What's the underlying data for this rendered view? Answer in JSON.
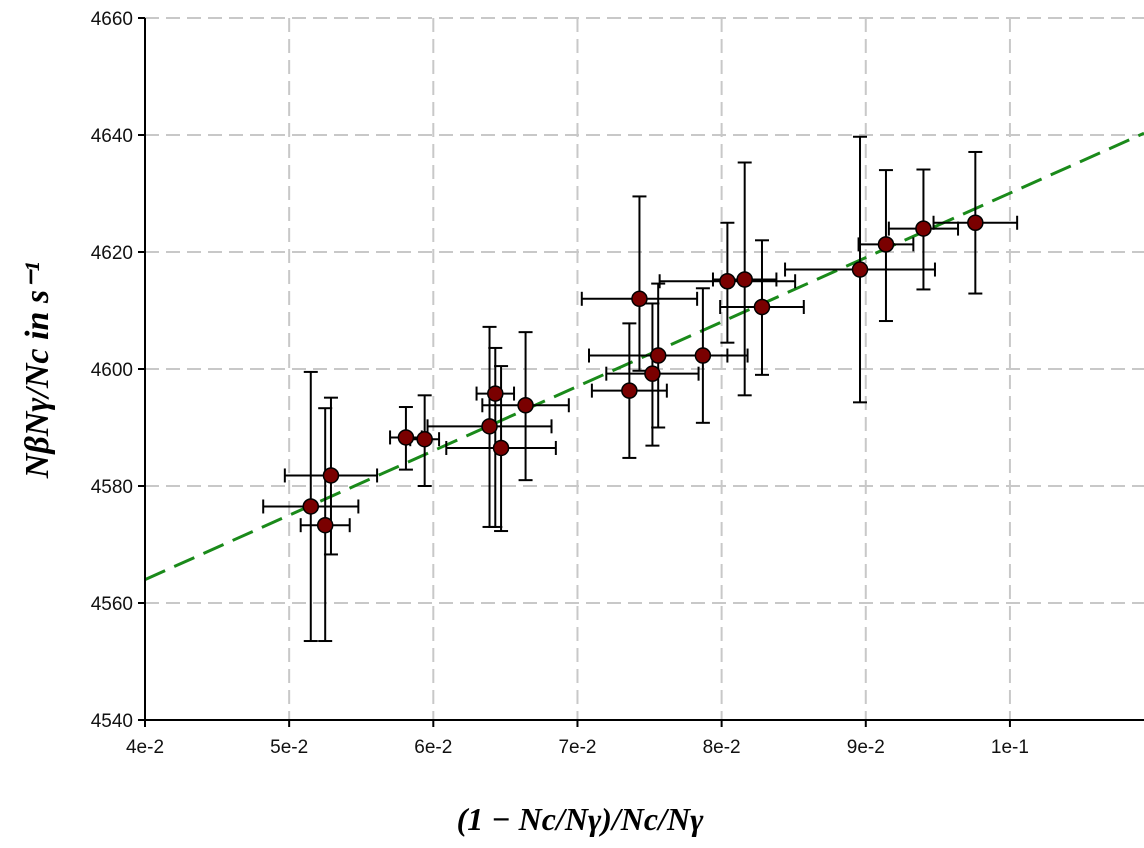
{
  "chart_data": {
    "type": "scatter",
    "title": "",
    "xlabel": "(1 − Nc/Nγ)/Nc/Nγ",
    "ylabel": "NβNγ/Nc in s⁻¹",
    "xlim": [
      0.04,
      0.1093
    ],
    "ylim": [
      4540,
      4660
    ],
    "grid": true,
    "x_ticks": [
      {
        "v": 0.04,
        "label": "4e-2"
      },
      {
        "v": 0.05,
        "label": "5e-2"
      },
      {
        "v": 0.06,
        "label": "6e-2"
      },
      {
        "v": 0.07,
        "label": "7e-2"
      },
      {
        "v": 0.08,
        "label": "8e-2"
      },
      {
        "v": 0.09,
        "label": "9e-2"
      },
      {
        "v": 0.1,
        "label": "1e-1"
      }
    ],
    "y_ticks": [
      {
        "v": 4540,
        "label": "4540"
      },
      {
        "v": 4560,
        "label": "4560"
      },
      {
        "v": 4580,
        "label": "4580"
      },
      {
        "v": 4600,
        "label": "4600"
      },
      {
        "v": 4620,
        "label": "4620"
      },
      {
        "v": 4640,
        "label": "4640"
      },
      {
        "v": 4660,
        "label": "4660"
      }
    ],
    "points": [
      {
        "x": 0.0515,
        "y": 4576.5,
        "xerr": 0.0033,
        "yerr_lo": 23.0,
        "yerr_hi": 23.0
      },
      {
        "x": 0.0525,
        "y": 4573.3,
        "xerr": 0.0017,
        "yerr_lo": 19.8,
        "yerr_hi": 20.0
      },
      {
        "x": 0.0529,
        "y": 4581.8,
        "xerr": 0.0032,
        "yerr_lo": 13.5,
        "yerr_hi": 13.3
      },
      {
        "x": 0.0581,
        "y": 4588.3,
        "xerr": 0.0011,
        "yerr_lo": 5.5,
        "yerr_hi": 5.2
      },
      {
        "x": 0.0594,
        "y": 4588.0,
        "xerr": 0.001,
        "yerr_lo": 8.0,
        "yerr_hi": 7.5
      },
      {
        "x": 0.0639,
        "y": 4590.2,
        "xerr": 0.0043,
        "yerr_lo": 17.2,
        "yerr_hi": 17.0
      },
      {
        "x": 0.0643,
        "y": 4595.8,
        "xerr": 0.0013,
        "yerr_lo": 22.8,
        "yerr_hi": 7.8
      },
      {
        "x": 0.0647,
        "y": 4586.5,
        "xerr": 0.0038,
        "yerr_lo": 14.2,
        "yerr_hi": 14.0
      },
      {
        "x": 0.0664,
        "y": 4593.8,
        "xerr": 0.003,
        "yerr_lo": 12.8,
        "yerr_hi": 12.5
      },
      {
        "x": 0.0736,
        "y": 4596.3,
        "xerr": 0.0026,
        "yerr_lo": 11.5,
        "yerr_hi": 11.5
      },
      {
        "x": 0.0743,
        "y": 4612.0,
        "xerr": 0.004,
        "yerr_lo": 12.3,
        "yerr_hi": 17.5
      },
      {
        "x": 0.0752,
        "y": 4599.2,
        "xerr": 0.0032,
        "yerr_lo": 12.3,
        "yerr_hi": 12.0
      },
      {
        "x": 0.0756,
        "y": 4602.3,
        "xerr": 0.0048,
        "yerr_lo": 12.3,
        "yerr_hi": 12.3
      },
      {
        "x": 0.0787,
        "y": 4602.3,
        "xerr": 0.0031,
        "yerr_lo": 11.5,
        "yerr_hi": 11.5
      },
      {
        "x": 0.0804,
        "y": 4615.0,
        "xerr": 0.0047,
        "yerr_lo": 10.5,
        "yerr_hi": 10.0
      },
      {
        "x": 0.0816,
        "y": 4615.3,
        "xerr": 0.0022,
        "yerr_lo": 19.8,
        "yerr_hi": 20.0
      },
      {
        "x": 0.0828,
        "y": 4610.6,
        "xerr": 0.0029,
        "yerr_lo": 11.6,
        "yerr_hi": 11.4
      },
      {
        "x": 0.0896,
        "y": 4617.0,
        "xerr": 0.0052,
        "yerr_lo": 22.7,
        "yerr_hi": 22.7
      },
      {
        "x": 0.0914,
        "y": 4621.3,
        "xerr": 0.0019,
        "yerr_lo": 13.1,
        "yerr_hi": 12.7
      },
      {
        "x": 0.094,
        "y": 4624.0,
        "xerr": 0.0024,
        "yerr_lo": 10.4,
        "yerr_hi": 10.1
      },
      {
        "x": 0.0976,
        "y": 4625.0,
        "xerr": 0.0029,
        "yerr_lo": 12.1,
        "yerr_hi": 12.1
      }
    ],
    "fit_line": {
      "x0": 0.04,
      "y0": 4564.0,
      "x1": 0.1093,
      "y1": 4640.3,
      "style": "dashed",
      "color": "#1a8a1a"
    },
    "colors": {
      "marker_fill": "#7a0000",
      "fit": "#1a8a1a",
      "grid": "#c8c8c8"
    }
  }
}
